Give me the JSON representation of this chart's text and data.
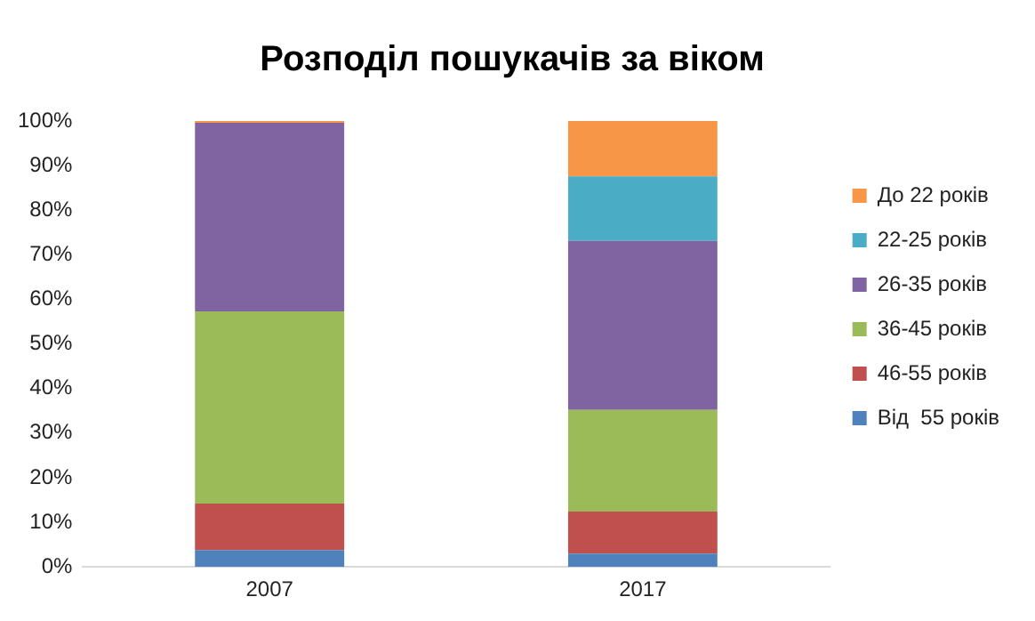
{
  "chart_data": {
    "type": "bar",
    "title": "Розподіл пошукачів за віком",
    "categories": [
      "2007",
      "2017"
    ],
    "stacked": true,
    "legend": "right",
    "grid": false,
    "ylim": [
      0,
      100
    ],
    "yticks": [
      {
        "value": 0,
        "label": "0%"
      },
      {
        "value": 10,
        "label": "10%"
      },
      {
        "value": 20,
        "label": "20%"
      },
      {
        "value": 30,
        "label": "30%"
      },
      {
        "value": 40,
        "label": "40%"
      },
      {
        "value": 50,
        "label": "50%"
      },
      {
        "value": 60,
        "label": "60%"
      },
      {
        "value": 70,
        "label": "70%"
      },
      {
        "value": 80,
        "label": "80%"
      },
      {
        "value": 90,
        "label": "90%"
      },
      {
        "value": 100,
        "label": "100%"
      }
    ],
    "series": [
      {
        "name": "Від  55 років",
        "color": "#4f81bd",
        "values": [
          3.8,
          3.0
        ]
      },
      {
        "name": "46-55 років",
        "color": "#c0504d",
        "values": [
          10.4,
          9.4
        ]
      },
      {
        "name": "36-45 років",
        "color": "#9bbb59",
        "values": [
          43.1,
          22.8
        ]
      },
      {
        "name": "26-35 років",
        "color": "#8064a2",
        "values": [
          42.3,
          37.9
        ]
      },
      {
        "name": "22-25 років",
        "color": "#4bacc6",
        "values": [
          0,
          14.5
        ]
      },
      {
        "name": "До 22 років",
        "color": "#f79646",
        "values": [
          0.4,
          12.4
        ]
      }
    ]
  }
}
